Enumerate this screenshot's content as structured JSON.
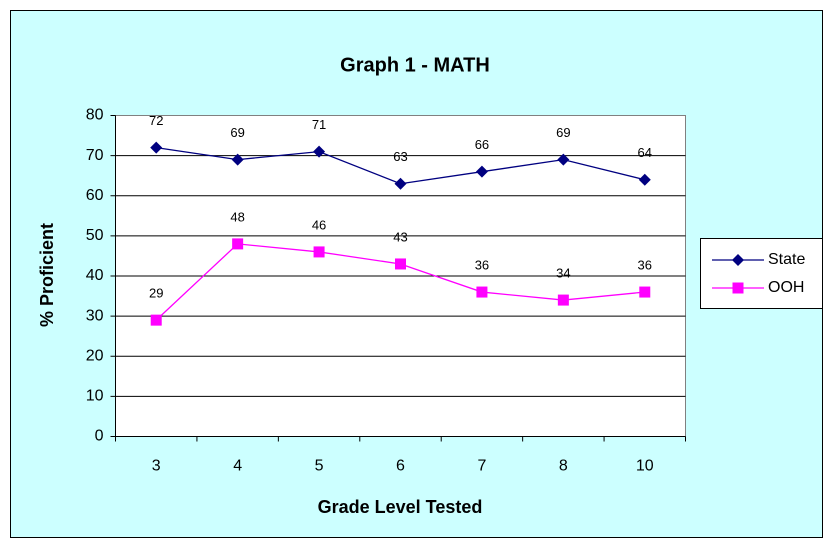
{
  "chart_data": {
    "type": "line",
    "title": "Graph 1 - MATH",
    "x_label": "Grade Level Tested",
    "y_label": "% Proficient",
    "categories": [
      "3",
      "4",
      "5",
      "6",
      "7",
      "8",
      "10"
    ],
    "series": [
      {
        "name": "State",
        "color": "#000080",
        "marker": "diamond",
        "values": [
          72,
          69,
          71,
          63,
          66,
          69,
          64
        ]
      },
      {
        "name": "OOH",
        "color": "#ff00ff",
        "marker": "square",
        "values": [
          29,
          48,
          46,
          43,
          36,
          34,
          36
        ]
      }
    ],
    "ylim": [
      0,
      80
    ],
    "yticks": [
      0,
      10,
      20,
      30,
      40,
      50,
      60,
      70,
      80
    ],
    "grid": true,
    "legend": "right"
  }
}
